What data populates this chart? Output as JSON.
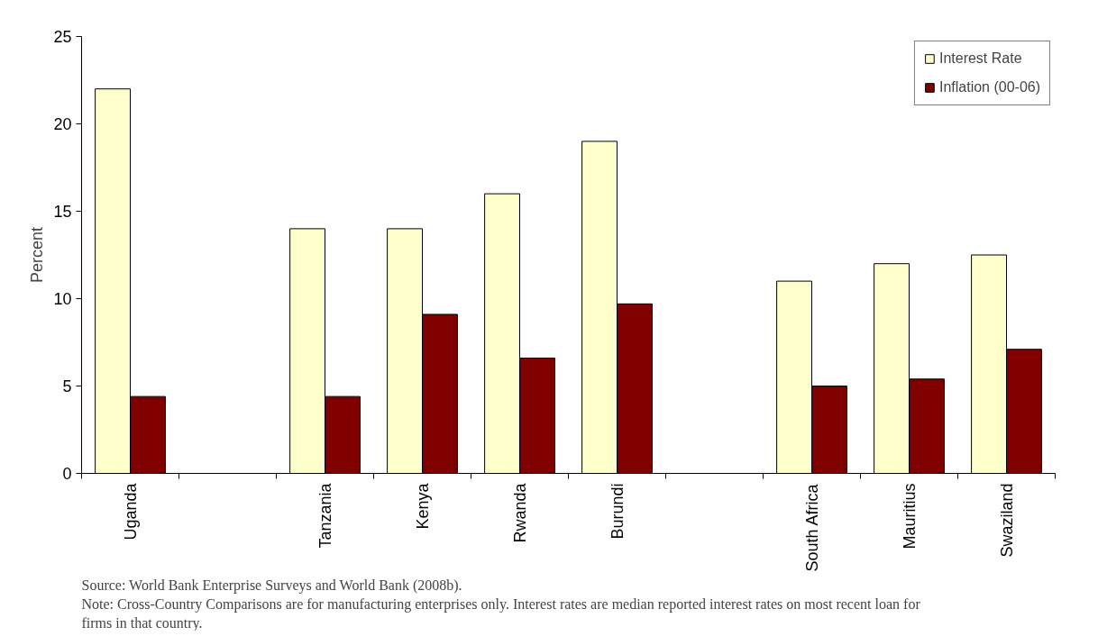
{
  "chart_data": {
    "type": "bar",
    "ylabel": "Percent",
    "categories": [
      "Uganda",
      null,
      "Tanzania",
      "Kenya",
      "Rwanda",
      "Burundi",
      null,
      "South Africa",
      "Mauritius",
      "Swaziland"
    ],
    "series": [
      {
        "name": "Interest Rate",
        "color": "#ffffcc",
        "values": [
          22,
          null,
          14,
          14,
          16,
          19,
          null,
          11,
          12,
          12.5
        ]
      },
      {
        "name": "Inflation (00-06)",
        "color": "#800000",
        "values": [
          4.4,
          null,
          4.4,
          9.1,
          6.6,
          9.7,
          null,
          5.0,
          5.4,
          7.1
        ]
      }
    ],
    "ylim": [
      0,
      25
    ],
    "yticks": [
      0,
      5,
      10,
      15,
      20,
      25
    ],
    "grid": false,
    "legend": "top right",
    "annotations": [
      "Source: World Bank Enterprise Surveys and World Bank (2008b).",
      "Note: Cross-Country Comparisons are for manufacturing enterprises only. Interest rates are median reported interest rates on most recent loan for firms in that country."
    ]
  }
}
